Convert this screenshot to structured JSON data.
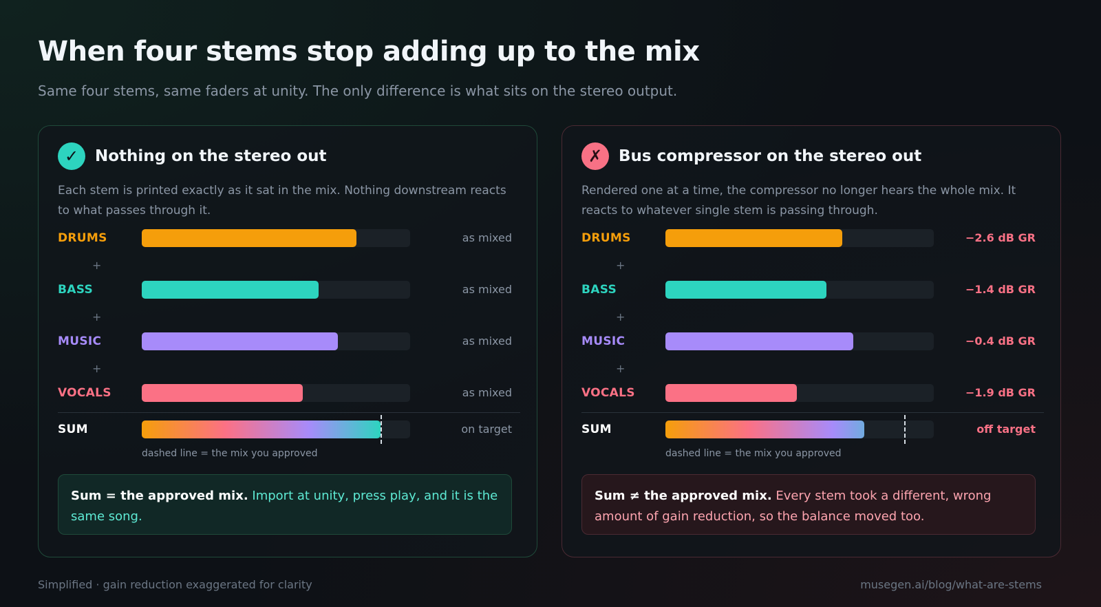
{
  "header": {
    "title": "When four stems stop adding up to the mix",
    "subtitle": "Same four stems, same faders at unity. The only difference is what sits on the stereo output."
  },
  "colors": {
    "drums": "#f59e0b",
    "bass": "#2dd4bf",
    "music": "#a78bfa",
    "vocals": "#fb7185",
    "sum_label": "#ffffff"
  },
  "panels": [
    {
      "id": "good",
      "badge": "✓",
      "badge_icon": "check-icon",
      "title": "Nothing on the stereo out",
      "description": "Each stem is printed exactly as it sat in the mix. Nothing downstream reacts to what passes through it.",
      "rows": [
        {
          "key": "drums",
          "label": "DRUMS",
          "level": 0.8,
          "status": "as mixed"
        },
        {
          "key": "bass",
          "label": "BASS",
          "level": 0.66,
          "status": "as mixed"
        },
        {
          "key": "music",
          "label": "MUSIC",
          "level": 0.73,
          "status": "as mixed"
        },
        {
          "key": "vocals",
          "label": "VOCALS",
          "level": 0.6,
          "status": "as mixed"
        }
      ],
      "plus": "+",
      "sum": {
        "label": "SUM",
        "level": 0.89,
        "target": 0.89,
        "status": "on target"
      },
      "note": "dashed line = the mix you approved",
      "callout_strong": "Sum = the approved mix.",
      "callout_text": " Import at unity, press play, and it is the same song."
    },
    {
      "id": "bad",
      "badge": "✗",
      "badge_icon": "cross-icon",
      "title": "Bus compressor on the stereo out",
      "description": "Rendered one at a time, the compressor no longer hears the whole mix. It reacts to whatever single stem is passing through.",
      "rows": [
        {
          "key": "drums",
          "label": "DRUMS",
          "level": 0.66,
          "status": "−2.6 dB GR"
        },
        {
          "key": "bass",
          "label": "BASS",
          "level": 0.6,
          "status": "−1.4 dB GR"
        },
        {
          "key": "music",
          "label": "MUSIC",
          "level": 0.7,
          "status": "−0.4 dB GR"
        },
        {
          "key": "vocals",
          "label": "VOCALS",
          "level": 0.49,
          "status": "−1.9 dB GR"
        }
      ],
      "plus": "+",
      "sum": {
        "label": "SUM",
        "level": 0.74,
        "target": 0.89,
        "status": "off target"
      },
      "note": "dashed line = the mix you approved",
      "callout_strong": "Sum ≠ the approved mix.",
      "callout_text": " Every stem took a different, wrong amount of gain reduction, so the balance moved too."
    }
  ],
  "footer": {
    "left": "Simplified · gain reduction exaggerated for clarity",
    "right": "musegen.ai/blog/what-are-stems"
  }
}
